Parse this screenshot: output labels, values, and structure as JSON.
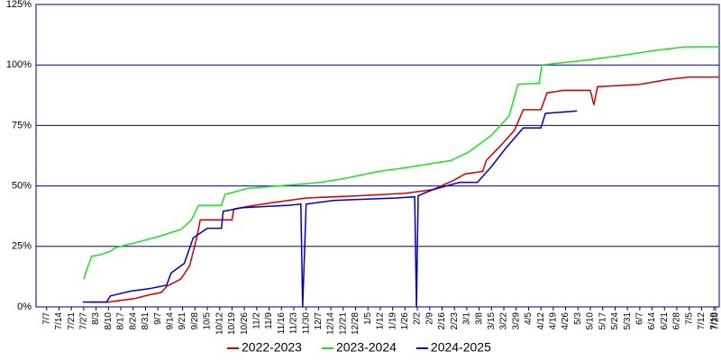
{
  "chart_data": {
    "type": "line",
    "xlim": [
      -6,
      381
    ],
    "ylim": [
      0,
      125
    ],
    "yticks": [
      {
        "value": 0,
        "label": "0%"
      },
      {
        "value": 25,
        "label": "25%"
      },
      {
        "value": 50,
        "label": "50%"
      },
      {
        "value": 75,
        "label": "75%"
      },
      {
        "value": 100,
        "label": "100%"
      },
      {
        "value": 125,
        "label": "125%"
      }
    ],
    "xticks": [
      {
        "value": 0,
        "label": "7/7"
      },
      {
        "value": 7,
        "label": "7/14"
      },
      {
        "value": 14,
        "label": "7/21"
      },
      {
        "value": 21,
        "label": "7/27"
      },
      {
        "value": 28,
        "label": "8/3"
      },
      {
        "value": 35,
        "label": "8/10"
      },
      {
        "value": 42,
        "label": "8/17"
      },
      {
        "value": 49,
        "label": "8/24"
      },
      {
        "value": 56,
        "label": "8/31"
      },
      {
        "value": 63,
        "label": "9/7"
      },
      {
        "value": 70,
        "label": "9/14"
      },
      {
        "value": 77,
        "label": "9/21"
      },
      {
        "value": 84,
        "label": "9/28"
      },
      {
        "value": 91,
        "label": "10/5"
      },
      {
        "value": 98,
        "label": "10/12"
      },
      {
        "value": 105,
        "label": "10/19"
      },
      {
        "value": 112,
        "label": "10/26"
      },
      {
        "value": 119,
        "label": "11/2"
      },
      {
        "value": 126,
        "label": "11/9"
      },
      {
        "value": 133,
        "label": "11/16"
      },
      {
        "value": 140,
        "label": "11/23"
      },
      {
        "value": 147,
        "label": "11/30"
      },
      {
        "value": 154,
        "label": "12/7"
      },
      {
        "value": 161,
        "label": "12/14"
      },
      {
        "value": 168,
        "label": "12/21"
      },
      {
        "value": 175,
        "label": "12/28"
      },
      {
        "value": 182,
        "label": "1/5"
      },
      {
        "value": 189,
        "label": "1/12"
      },
      {
        "value": 196,
        "label": "1/19"
      },
      {
        "value": 203,
        "label": "1/26"
      },
      {
        "value": 210,
        "label": "2/2"
      },
      {
        "value": 217,
        "label": "2/9"
      },
      {
        "value": 224,
        "label": "2/16"
      },
      {
        "value": 231,
        "label": "2/23"
      },
      {
        "value": 238,
        "label": "3/1"
      },
      {
        "value": 245,
        "label": "3/8"
      },
      {
        "value": 252,
        "label": "3/15"
      },
      {
        "value": 259,
        "label": "3/22"
      },
      {
        "value": 266,
        "label": "3/29"
      },
      {
        "value": 273,
        "label": "4/5"
      },
      {
        "value": 280,
        "label": "4/12"
      },
      {
        "value": 287,
        "label": "4/19"
      },
      {
        "value": 294,
        "label": "4/26"
      },
      {
        "value": 301,
        "label": "5/3"
      },
      {
        "value": 308,
        "label": "5/10"
      },
      {
        "value": 315,
        "label": "5/17"
      },
      {
        "value": 322,
        "label": "5/24"
      },
      {
        "value": 329,
        "label": "5/31"
      },
      {
        "value": 336,
        "label": "6/7"
      },
      {
        "value": 343,
        "label": "6/14"
      },
      {
        "value": 350,
        "label": "6/21"
      },
      {
        "value": 357,
        "label": "6/28"
      },
      {
        "value": 364,
        "label": "7/5"
      },
      {
        "value": 371,
        "label": "7/12"
      },
      {
        "value": 378,
        "label": "7/19"
      },
      {
        "value": 379,
        "label": "7/20"
      }
    ],
    "grid": true,
    "legend": "bottom",
    "series": [
      {
        "name": "2022-2023",
        "color": "#d00000",
        "x": [
          24.5,
          35,
          50,
          58,
          65,
          68,
          76,
          81,
          85,
          87,
          105,
          106,
          114,
          127,
          147,
          178,
          203,
          219,
          231,
          237,
          247,
          249,
          257,
          265,
          270,
          280,
          283.5,
          293,
          308,
          310,
          312,
          336,
          352,
          364,
          381
        ],
        "values": [
          2,
          2,
          3.5,
          5,
          6,
          8.5,
          11.5,
          17,
          28.5,
          36,
          36,
          40.5,
          41.5,
          43,
          45,
          46,
          47,
          48.5,
          52.5,
          55,
          56,
          60.5,
          66.5,
          73,
          81.5,
          81.5,
          88.5,
          89.5,
          89.5,
          83.5,
          91,
          92,
          94,
          95,
          95
        ]
      },
      {
        "name": "2023-2024",
        "color": "#22dd22",
        "x": [
          21,
          23,
          25.5,
          30,
          36,
          39,
          50,
          63,
          76,
          82,
          86,
          99,
          101,
          114,
          140,
          155,
          168,
          188,
          203,
          216,
          229,
          239,
          252,
          262,
          267,
          279,
          280.5,
          293,
          306,
          331,
          344,
          362,
          381
        ],
        "values": [
          11.5,
          16,
          21,
          21.5,
          23,
          24.5,
          26.5,
          29,
          32,
          36,
          42,
          42,
          46.5,
          49,
          50.5,
          51.5,
          53,
          56,
          57.5,
          59,
          60.5,
          64,
          71,
          79,
          92,
          92.5,
          100,
          101,
          102,
          104.5,
          106,
          107.5,
          107.5
        ]
      },
      {
        "name": "2024-2025",
        "color": "#0000c0",
        "x": [
          20.5,
          34,
          36,
          47.5,
          58,
          68,
          70.5,
          78,
          83,
          91,
          99,
          100,
          111,
          137,
          144,
          145,
          147,
          162.5,
          198,
          208.5,
          209.5,
          210.5,
          219,
          234,
          244,
          252,
          260,
          270,
          280,
          282.5,
          300.5
        ],
        "values": [
          2,
          2,
          4.5,
          6.5,
          7.5,
          9,
          14,
          18,
          28.5,
          32.5,
          32.5,
          39.5,
          41,
          42,
          42.5,
          0,
          42.5,
          44,
          45,
          45.5,
          0,
          46,
          48.5,
          51.5,
          51.5,
          58,
          65.5,
          74,
          74,
          80,
          81
        ]
      }
    ]
  }
}
